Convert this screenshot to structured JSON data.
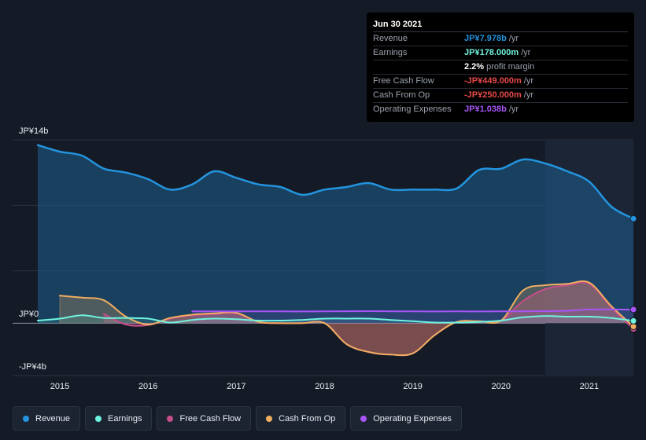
{
  "tooltip": {
    "date": "Jun 30 2021",
    "rows": [
      {
        "label": "Revenue",
        "value": "JP¥7.978b",
        "unit": "/yr",
        "color": "#2394df"
      },
      {
        "label": "Earnings",
        "value": "JP¥178.000m",
        "unit": "/yr",
        "color": "#6ff4df"
      },
      {
        "label": "",
        "value": "2.2%",
        "unit": "profit margin",
        "color": "#ffffff"
      },
      {
        "label": "Free Cash Flow",
        "value": "-JP¥449.000m",
        "unit": "/yr",
        "color": "#e64949"
      },
      {
        "label": "Cash From Op",
        "value": "-JP¥250.000m",
        "unit": "/yr",
        "color": "#e64949"
      },
      {
        "label": "Operating Expenses",
        "value": "JP¥1.038b",
        "unit": "/yr",
        "color": "#a855f7"
      }
    ]
  },
  "legend": [
    {
      "label": "Revenue",
      "color": "#2394df"
    },
    {
      "label": "Earnings",
      "color": "#6ff4df"
    },
    {
      "label": "Free Cash Flow",
      "color": "#c64e8a"
    },
    {
      "label": "Cash From Op",
      "color": "#f0ad60"
    },
    {
      "label": "Operating Expenses",
      "color": "#a855f7"
    }
  ],
  "chart_data": {
    "type": "area",
    "title": "",
    "xlabel": "",
    "ylabel": "",
    "y_tick_labels": [
      "JP¥14b",
      "JP¥0",
      "-JP¥4b"
    ],
    "x_tick_labels": [
      "2015",
      "2016",
      "2017",
      "2018",
      "2019",
      "2020",
      "2021"
    ],
    "x_ticks": [
      2015,
      2016,
      2017,
      2018,
      2019,
      2020,
      2021
    ],
    "xlim": [
      2014.75,
      2021.5
    ],
    "ylim": [
      -4,
      14
    ],
    "highlight_from": 2020.5,
    "colors": {
      "revenue": "#2394df",
      "earnings": "#6ff4df",
      "fcf": "#c64e8a",
      "cfo": "#f0ad60",
      "opex": "#a855f7"
    },
    "series": [
      {
        "name": "Revenue",
        "key": "revenue",
        "x": [
          2014.75,
          2015.0,
          2015.25,
          2015.5,
          2015.75,
          2016.0,
          2016.25,
          2016.5,
          2016.75,
          2017.0,
          2017.25,
          2017.5,
          2017.75,
          2018.0,
          2018.25,
          2018.5,
          2018.75,
          2019.0,
          2019.25,
          2019.5,
          2019.75,
          2020.0,
          2020.25,
          2020.5,
          2020.75,
          2021.0,
          2021.25,
          2021.5
        ],
        "values": [
          13.6,
          13.1,
          12.8,
          11.8,
          11.5,
          11.0,
          10.2,
          10.6,
          11.6,
          11.1,
          10.6,
          10.4,
          9.8,
          10.2,
          10.4,
          10.7,
          10.2,
          10.2,
          10.2,
          10.3,
          11.7,
          11.8,
          12.5,
          12.2,
          11.6,
          10.8,
          8.9,
          7.978
        ]
      },
      {
        "name": "Earnings",
        "key": "earnings",
        "x": [
          2014.75,
          2015.0,
          2015.25,
          2015.5,
          2015.75,
          2016.0,
          2016.25,
          2016.5,
          2016.75,
          2017.0,
          2017.25,
          2017.5,
          2017.75,
          2018.0,
          2018.25,
          2018.5,
          2018.75,
          2019.0,
          2019.25,
          2019.5,
          2019.75,
          2020.0,
          2020.25,
          2020.5,
          2020.75,
          2021.0,
          2021.25,
          2021.5
        ],
        "values": [
          0.2,
          0.35,
          0.6,
          0.4,
          0.4,
          0.35,
          0.05,
          0.25,
          0.35,
          0.3,
          0.2,
          0.2,
          0.25,
          0.35,
          0.35,
          0.35,
          0.25,
          0.15,
          0.05,
          0.05,
          0.1,
          0.2,
          0.45,
          0.55,
          0.5,
          0.5,
          0.4,
          0.178
        ]
      },
      {
        "name": "Free Cash Flow",
        "key": "fcf",
        "x": [
          2015.5,
          2015.75,
          2016.0,
          2016.25,
          2016.5,
          2016.75,
          2017.0,
          2017.25,
          2017.5,
          2017.75,
          2018.0,
          2018.25,
          2018.5,
          2018.75,
          2019.0,
          2019.25,
          2019.5,
          2019.75,
          2020.0,
          2020.25,
          2020.5,
          2020.75,
          2021.0,
          2021.25,
          2021.5
        ],
        "values": [
          0.7,
          -0.1,
          -0.15,
          0.35,
          0.6,
          0.7,
          0.75,
          0.1,
          0.0,
          0.0,
          0.0,
          -1.6,
          -2.2,
          -2.4,
          -2.3,
          -0.9,
          0.1,
          0.15,
          0.2,
          1.7,
          2.6,
          2.9,
          3.0,
          1.2,
          -0.449
        ]
      },
      {
        "name": "Cash From Op",
        "key": "cfo",
        "x": [
          2015.0,
          2015.25,
          2015.5,
          2015.75,
          2016.0,
          2016.25,
          2016.5,
          2016.75,
          2017.0,
          2017.25,
          2017.5,
          2017.75,
          2018.0,
          2018.25,
          2018.5,
          2018.75,
          2019.0,
          2019.25,
          2019.5,
          2019.75,
          2020.0,
          2020.25,
          2020.5,
          2020.75,
          2021.0,
          2021.25,
          2021.5
        ],
        "values": [
          2.1,
          1.95,
          1.75,
          0.5,
          -0.1,
          0.4,
          0.65,
          0.75,
          0.8,
          0.1,
          0.0,
          0.0,
          0.0,
          -1.6,
          -2.2,
          -2.4,
          -2.3,
          -0.9,
          0.1,
          0.15,
          0.2,
          2.5,
          2.9,
          3.0,
          3.1,
          1.3,
          -0.25
        ]
      },
      {
        "name": "Operating Expenses",
        "key": "opex",
        "x": [
          2016.5,
          2017.0,
          2017.5,
          2018.0,
          2018.5,
          2019.0,
          2019.5,
          2020.0,
          2020.5,
          2020.75,
          2021.0,
          2021.25,
          2021.5
        ],
        "values": [
          0.9,
          0.9,
          0.9,
          0.9,
          0.92,
          0.9,
          0.9,
          0.9,
          0.92,
          0.95,
          1.05,
          1.05,
          1.038
        ]
      }
    ]
  }
}
